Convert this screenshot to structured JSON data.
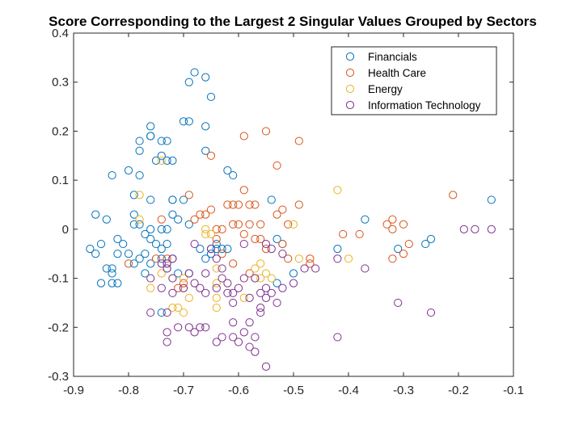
{
  "chart_data": {
    "type": "scatter",
    "title": "Score Corresponding to the Largest 2 Singular Values Grouped by Sectors",
    "xlabel": "",
    "ylabel": "",
    "xlim": [
      -0.9,
      -0.1
    ],
    "ylim": [
      -0.3,
      0.4
    ],
    "xticks": [
      "-0.9",
      "-0.8",
      "-0.7",
      "-0.6",
      "-0.5",
      "-0.4",
      "-0.3",
      "-0.2",
      "-0.1"
    ],
    "yticks": [
      "-0.3",
      "-0.2",
      "-0.1",
      "0",
      "0.1",
      "0.2",
      "0.3",
      "0.4"
    ],
    "grid": false,
    "legend_position": "top-right",
    "marker": "open circle",
    "series": [
      {
        "name": "Financials",
        "color": "#0072BD",
        "points": [
          [
            -0.69,
            0.3
          ],
          [
            -0.68,
            0.32
          ],
          [
            -0.66,
            0.31
          ],
          [
            -0.65,
            0.27
          ],
          [
            -0.76,
            0.21
          ],
          [
            -0.76,
            0.19
          ],
          [
            -0.76,
            0.19
          ],
          [
            -0.74,
            0.18
          ],
          [
            -0.73,
            0.18
          ],
          [
            -0.7,
            0.22
          ],
          [
            -0.69,
            0.22
          ],
          [
            -0.78,
            0.18
          ],
          [
            -0.78,
            0.16
          ],
          [
            -0.66,
            0.21
          ],
          [
            -0.66,
            0.16
          ],
          [
            -0.74,
            0.15
          ],
          [
            -0.73,
            0.14
          ],
          [
            -0.75,
            0.14
          ],
          [
            -0.72,
            0.14
          ],
          [
            -0.83,
            0.11
          ],
          [
            -0.8,
            0.12
          ],
          [
            -0.78,
            0.11
          ],
          [
            -0.62,
            0.12
          ],
          [
            -0.61,
            0.11
          ],
          [
            -0.79,
            0.07
          ],
          [
            -0.76,
            0.06
          ],
          [
            -0.72,
            0.06
          ],
          [
            -0.72,
            0.06
          ],
          [
            -0.7,
            0.06
          ],
          [
            -0.86,
            0.03
          ],
          [
            -0.84,
            0.02
          ],
          [
            -0.79,
            0.03
          ],
          [
            -0.79,
            0.01
          ],
          [
            -0.78,
            0.01
          ],
          [
            -0.77,
            -0.01
          ],
          [
            -0.76,
            0.0
          ],
          [
            -0.76,
            -0.02
          ],
          [
            -0.74,
            0.0
          ],
          [
            -0.73,
            0.0
          ],
          [
            -0.72,
            0.03
          ],
          [
            -0.71,
            0.02
          ],
          [
            -0.69,
            0.01
          ],
          [
            -0.82,
            -0.02
          ],
          [
            -0.81,
            -0.03
          ],
          [
            -0.82,
            -0.05
          ],
          [
            -0.8,
            -0.05
          ],
          [
            -0.79,
            -0.07
          ],
          [
            -0.78,
            -0.06
          ],
          [
            -0.77,
            -0.05
          ],
          [
            -0.75,
            -0.03
          ],
          [
            -0.74,
            -0.04
          ],
          [
            -0.73,
            -0.03
          ],
          [
            -0.87,
            -0.04
          ],
          [
            -0.86,
            -0.05
          ],
          [
            -0.85,
            -0.03
          ],
          [
            -0.84,
            -0.08
          ],
          [
            -0.83,
            -0.09
          ],
          [
            -0.83,
            -0.08
          ],
          [
            -0.85,
            -0.11
          ],
          [
            -0.83,
            -0.11
          ],
          [
            -0.82,
            -0.11
          ],
          [
            -0.77,
            -0.09
          ],
          [
            -0.76,
            -0.07
          ],
          [
            -0.74,
            -0.06
          ],
          [
            -0.73,
            -0.07
          ],
          [
            -0.73,
            -0.08
          ],
          [
            -0.72,
            -0.06
          ],
          [
            -0.71,
            -0.09
          ],
          [
            -0.69,
            -0.09
          ],
          [
            -0.67,
            -0.04
          ],
          [
            -0.65,
            -0.04
          ],
          [
            -0.64,
            -0.04
          ],
          [
            -0.63,
            -0.04
          ],
          [
            -0.62,
            -0.04
          ],
          [
            -0.65,
            -0.05
          ],
          [
            -0.66,
            -0.06
          ],
          [
            -0.64,
            -0.03
          ],
          [
            -0.54,
            0.06
          ],
          [
            -0.53,
            -0.02
          ],
          [
            -0.52,
            -0.03
          ],
          [
            -0.53,
            -0.11
          ],
          [
            -0.5,
            -0.09
          ],
          [
            -0.42,
            -0.04
          ],
          [
            -0.37,
            0.02
          ],
          [
            -0.31,
            -0.04
          ],
          [
            -0.26,
            -0.03
          ],
          [
            -0.25,
            -0.02
          ],
          [
            -0.14,
            0.06
          ],
          [
            -0.74,
            -0.17
          ]
        ]
      },
      {
        "name": "Health Care",
        "color": "#D95319",
        "points": [
          [
            -0.59,
            0.19
          ],
          [
            -0.55,
            0.2
          ],
          [
            -0.49,
            0.18
          ],
          [
            -0.65,
            0.15
          ],
          [
            -0.53,
            0.13
          ],
          [
            -0.69,
            0.07
          ],
          [
            -0.59,
            0.08
          ],
          [
            -0.62,
            0.05
          ],
          [
            -0.61,
            0.05
          ],
          [
            -0.58,
            0.05
          ],
          [
            -0.57,
            0.05
          ],
          [
            -0.6,
            0.05
          ],
          [
            -0.53,
            0.03
          ],
          [
            -0.52,
            0.04
          ],
          [
            -0.49,
            0.05
          ],
          [
            -0.65,
            0.04
          ],
          [
            -0.67,
            0.03
          ],
          [
            -0.68,
            0.02
          ],
          [
            -0.66,
            0.03
          ],
          [
            -0.64,
            0.0
          ],
          [
            -0.63,
            0.0
          ],
          [
            -0.61,
            0.01
          ],
          [
            -0.6,
            0.01
          ],
          [
            -0.58,
            0.01
          ],
          [
            -0.56,
            0.01
          ],
          [
            -0.51,
            0.01
          ],
          [
            -0.74,
            0.02
          ],
          [
            -0.8,
            -0.07
          ],
          [
            -0.75,
            -0.06
          ],
          [
            -0.73,
            -0.06
          ],
          [
            -0.71,
            -0.12
          ],
          [
            -0.7,
            -0.11
          ],
          [
            -0.64,
            -0.02
          ],
          [
            -0.63,
            -0.05
          ],
          [
            -0.61,
            -0.07
          ],
          [
            -0.58,
            -0.09
          ],
          [
            -0.57,
            -0.1
          ],
          [
            -0.56,
            -0.02
          ],
          [
            -0.55,
            -0.04
          ],
          [
            -0.52,
            -0.03
          ],
          [
            -0.51,
            -0.06
          ],
          [
            -0.47,
            -0.06
          ],
          [
            -0.47,
            -0.07
          ],
          [
            -0.41,
            -0.01
          ],
          [
            -0.38,
            -0.01
          ],
          [
            -0.33,
            0.01
          ],
          [
            -0.32,
            0.02
          ],
          [
            -0.32,
            0.0
          ],
          [
            -0.3,
            0.01
          ],
          [
            -0.29,
            -0.03
          ],
          [
            -0.3,
            -0.05
          ],
          [
            -0.32,
            -0.06
          ],
          [
            -0.21,
            0.07
          ],
          [
            -0.59,
            -0.01
          ],
          [
            -0.57,
            -0.02
          ]
        ]
      },
      {
        "name": "Energy",
        "color": "#EDB120",
        "points": [
          [
            -0.78,
            0.07
          ],
          [
            -0.78,
            0.02
          ],
          [
            -0.74,
            0.14
          ],
          [
            -0.66,
            0.0
          ],
          [
            -0.66,
            -0.01
          ],
          [
            -0.65,
            -0.01
          ],
          [
            -0.76,
            -0.12
          ],
          [
            -0.74,
            -0.09
          ],
          [
            -0.72,
            -0.1
          ],
          [
            -0.7,
            -0.1
          ],
          [
            -0.7,
            -0.12
          ],
          [
            -0.69,
            -0.14
          ],
          [
            -0.71,
            -0.16
          ],
          [
            -0.72,
            -0.16
          ],
          [
            -0.7,
            -0.17
          ],
          [
            -0.64,
            -0.08
          ],
          [
            -0.64,
            -0.11
          ],
          [
            -0.64,
            -0.14
          ],
          [
            -0.64,
            -0.16
          ],
          [
            -0.56,
            -0.07
          ],
          [
            -0.56,
            -0.1
          ],
          [
            -0.55,
            -0.09
          ],
          [
            -0.54,
            -0.1
          ],
          [
            -0.5,
            0.01
          ],
          [
            -0.49,
            -0.06
          ],
          [
            -0.42,
            0.08
          ],
          [
            -0.4,
            -0.06
          ],
          [
            -0.59,
            -0.14
          ],
          [
            -0.57,
            -0.08
          ]
        ]
      },
      {
        "name": "Information Technology",
        "color": "#7E2F8E",
        "points": [
          [
            -0.68,
            -0.03
          ],
          [
            -0.65,
            -0.04
          ],
          [
            -0.64,
            -0.06
          ],
          [
            -0.62,
            -0.11
          ],
          [
            -0.6,
            -0.12
          ],
          [
            -0.59,
            -0.03
          ],
          [
            -0.55,
            -0.03
          ],
          [
            -0.54,
            -0.04
          ],
          [
            -0.52,
            -0.05
          ],
          [
            -0.5,
            -0.11
          ],
          [
            -0.48,
            -0.08
          ],
          [
            -0.46,
            -0.08
          ],
          [
            -0.42,
            -0.06
          ],
          [
            -0.37,
            -0.08
          ],
          [
            -0.76,
            -0.1
          ],
          [
            -0.74,
            -0.07
          ],
          [
            -0.73,
            -0.07
          ],
          [
            -0.73,
            -0.08
          ],
          [
            -0.72,
            -0.06
          ],
          [
            -0.72,
            -0.1
          ],
          [
            -0.74,
            -0.12
          ],
          [
            -0.72,
            -0.13
          ],
          [
            -0.7,
            -0.12
          ],
          [
            -0.69,
            -0.09
          ],
          [
            -0.68,
            -0.11
          ],
          [
            -0.67,
            -0.12
          ],
          [
            -0.66,
            -0.13
          ],
          [
            -0.64,
            -0.12
          ],
          [
            -0.62,
            -0.13
          ],
          [
            -0.61,
            -0.13
          ],
          [
            -0.61,
            -0.15
          ],
          [
            -0.59,
            -0.1
          ],
          [
            -0.58,
            -0.14
          ],
          [
            -0.57,
            -0.1
          ],
          [
            -0.56,
            -0.13
          ],
          [
            -0.55,
            -0.12
          ],
          [
            -0.54,
            -0.13
          ],
          [
            -0.53,
            -0.15
          ],
          [
            -0.52,
            -0.12
          ],
          [
            -0.76,
            -0.17
          ],
          [
            -0.73,
            -0.17
          ],
          [
            -0.73,
            -0.21
          ],
          [
            -0.73,
            -0.23
          ],
          [
            -0.71,
            -0.2
          ],
          [
            -0.69,
            -0.2
          ],
          [
            -0.68,
            -0.21
          ],
          [
            -0.67,
            -0.2
          ],
          [
            -0.66,
            -0.2
          ],
          [
            -0.64,
            -0.23
          ],
          [
            -0.63,
            -0.22
          ],
          [
            -0.61,
            -0.19
          ],
          [
            -0.61,
            -0.22
          ],
          [
            -0.6,
            -0.23
          ],
          [
            -0.59,
            -0.21
          ],
          [
            -0.58,
            -0.19
          ],
          [
            -0.58,
            -0.24
          ],
          [
            -0.57,
            -0.25
          ],
          [
            -0.56,
            -0.16
          ],
          [
            -0.56,
            -0.17
          ],
          [
            -0.55,
            -0.14
          ],
          [
            -0.55,
            -0.28
          ],
          [
            -0.57,
            -0.22
          ],
          [
            -0.31,
            -0.15
          ],
          [
            -0.25,
            -0.17
          ],
          [
            -0.42,
            -0.22
          ],
          [
            -0.19,
            0.0
          ],
          [
            -0.17,
            0.0
          ],
          [
            -0.14,
            0.0
          ],
          [
            -0.63,
            -0.08
          ],
          [
            -0.63,
            -0.1
          ],
          [
            -0.66,
            -0.09
          ]
        ]
      }
    ]
  }
}
